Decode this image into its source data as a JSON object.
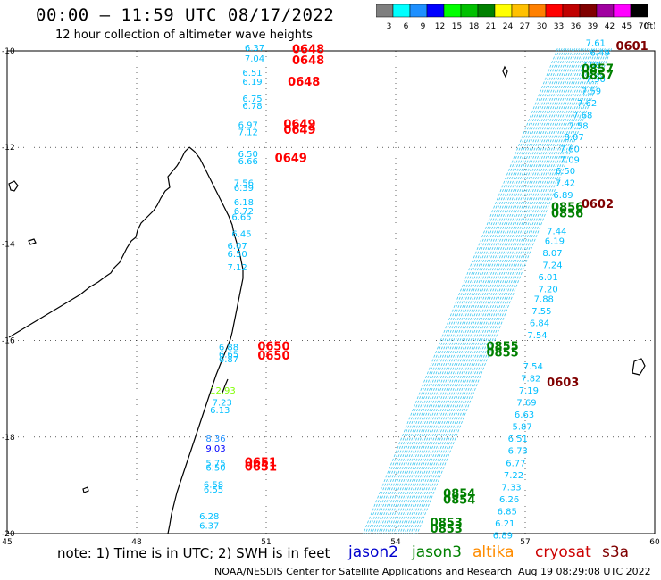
{
  "header": {
    "title": "00:00 – 11:59 UTC 08/17/2022",
    "subtitle": "12 hour collection of altimeter wave heights"
  },
  "colorbar": {
    "unit": "(ft)",
    "ticks": [
      "3",
      "6",
      "9",
      "12",
      "15",
      "18",
      "21",
      "24",
      "27",
      "30",
      "33",
      "36",
      "39",
      "42",
      "45",
      "70"
    ],
    "colors": [
      "#7f7f7f",
      "#00ffff",
      "#1e90ff",
      "#0000ff",
      "#00ff00",
      "#00c000",
      "#008000",
      "#ffff00",
      "#ffc000",
      "#ff8000",
      "#ff0000",
      "#c00000",
      "#800000",
      "#a000a0",
      "#ff00ff",
      "#000000"
    ]
  },
  "map": {
    "lat_ticks": [
      "-10",
      "-12",
      "-14",
      "-16",
      "-18",
      "-20"
    ],
    "lon_ticks": [
      "45",
      "48",
      "51",
      "54",
      "57",
      "60"
    ],
    "lat_range": [
      -20,
      -10
    ],
    "lon_range": [
      45,
      60
    ],
    "pass_labels": [
      {
        "text": "0648",
        "color": "#ff0000",
        "lon": 51.6,
        "lat": -10.05
      },
      {
        "text": "0648",
        "color": "#ff0000",
        "lon": 51.6,
        "lat": -10.28
      },
      {
        "text": "0648",
        "color": "#ff0000",
        "lon": 51.5,
        "lat": -10.72
      },
      {
        "text": "0649",
        "color": "#ff0000",
        "lon": 51.4,
        "lat": -11.6
      },
      {
        "text": "0649",
        "color": "#ff0000",
        "lon": 51.4,
        "lat": -11.72
      },
      {
        "text": "0649",
        "color": "#ff0000",
        "lon": 51.2,
        "lat": -12.3
      },
      {
        "text": "0650",
        "color": "#ff0000",
        "lon": 50.8,
        "lat": -16.2
      },
      {
        "text": "0650",
        "color": "#ff0000",
        "lon": 50.8,
        "lat": -16.4
      },
      {
        "text": "0651",
        "color": "#ff0000",
        "lon": 50.5,
        "lat": -18.6
      },
      {
        "text": "0651",
        "color": "#ff0000",
        "lon": 50.5,
        "lat": -18.7
      },
      {
        "text": "0601",
        "color": "#800000",
        "lon": 59.1,
        "lat": -9.98
      },
      {
        "text": "0602",
        "color": "#800000",
        "lon": 58.3,
        "lat": -13.25
      },
      {
        "text": "0603",
        "color": "#800000",
        "lon": 57.5,
        "lat": -16.95
      },
      {
        "text": "0857",
        "color": "#008000",
        "lon": 58.3,
        "lat": -10.45
      },
      {
        "text": "0857",
        "color": "#008000",
        "lon": 58.3,
        "lat": -10.58
      },
      {
        "text": "0856",
        "color": "#008000",
        "lon": 57.6,
        "lat": -13.32
      },
      {
        "text": "0856",
        "color": "#008000",
        "lon": 57.6,
        "lat": -13.45
      },
      {
        "text": "0855",
        "color": "#008000",
        "lon": 56.1,
        "lat": -16.2
      },
      {
        "text": "0855",
        "color": "#008000",
        "lon": 56.1,
        "lat": -16.33
      },
      {
        "text": "0854",
        "color": "#008000",
        "lon": 55.1,
        "lat": -19.25
      },
      {
        "text": "0854",
        "color": "#008000",
        "lon": 55.1,
        "lat": -19.38
      },
      {
        "text": "0853",
        "color": "#008000",
        "lon": 54.8,
        "lat": -19.85
      },
      {
        "text": "0853",
        "color": "#008000",
        "lon": 54.8,
        "lat": -19.98
      }
    ],
    "wave_heights": [
      {
        "text": "6.37",
        "color": "#00bfff",
        "lon": 50.5,
        "lat": -10.0
      },
      {
        "text": "7.04",
        "color": "#00bfff",
        "lon": 50.5,
        "lat": -10.22
      },
      {
        "text": "6.51",
        "color": "#00bfff",
        "lon": 50.45,
        "lat": -10.52
      },
      {
        "text": "6.19",
        "color": "#00bfff",
        "lon": 50.45,
        "lat": -10.7
      },
      {
        "text": "6.75",
        "color": "#00bfff",
        "lon": 50.45,
        "lat": -11.05
      },
      {
        "text": "6.78",
        "color": "#00bfff",
        "lon": 50.45,
        "lat": -11.2
      },
      {
        "text": "6.97",
        "color": "#00bfff",
        "lon": 50.35,
        "lat": -11.6
      },
      {
        "text": "7.12",
        "color": "#00bfff",
        "lon": 50.35,
        "lat": -11.75
      },
      {
        "text": "6.50",
        "color": "#00bfff",
        "lon": 50.35,
        "lat": -12.2
      },
      {
        "text": "6.66",
        "color": "#00bfff",
        "lon": 50.35,
        "lat": -12.35
      },
      {
        "text": "7.56",
        "color": "#00bfff",
        "lon": 50.25,
        "lat": -12.8
      },
      {
        "text": "6.39",
        "color": "#00bfff",
        "lon": 50.25,
        "lat": -12.9
      },
      {
        "text": "6.18",
        "color": "#00bfff",
        "lon": 50.25,
        "lat": -13.2
      },
      {
        "text": "6.72",
        "color": "#00bfff",
        "lon": 50.25,
        "lat": -13.38
      },
      {
        "text": "6.65",
        "color": "#00bfff",
        "lon": 50.2,
        "lat": -13.5
      },
      {
        "text": "6.45",
        "color": "#00bfff",
        "lon": 50.2,
        "lat": -13.85
      },
      {
        "text": "6.07",
        "color": "#00bfff",
        "lon": 50.1,
        "lat": -14.1
      },
      {
        "text": "6.50",
        "color": "#00bfff",
        "lon": 50.1,
        "lat": -14.27
      },
      {
        "text": "7.12",
        "color": "#00bfff",
        "lon": 50.1,
        "lat": -14.55
      },
      {
        "text": "6.88",
        "color": "#00bfff",
        "lon": 49.9,
        "lat": -16.2
      },
      {
        "text": "6.65",
        "color": "#00bfff",
        "lon": 49.9,
        "lat": -16.35
      },
      {
        "text": "6.87",
        "color": "#00bfff",
        "lon": 49.9,
        "lat": -16.45
      },
      {
        "text": "12.93",
        "color": "#7fff00",
        "lon": 49.7,
        "lat": -17.1
      },
      {
        "text": "7.23",
        "color": "#00bfff",
        "lon": 49.75,
        "lat": -17.35
      },
      {
        "text": "6.13",
        "color": "#00bfff",
        "lon": 49.7,
        "lat": -17.5
      },
      {
        "text": "8.36",
        "color": "#1e90ff",
        "lon": 49.6,
        "lat": -18.1
      },
      {
        "text": "9.03",
        "color": "#0000ff",
        "lon": 49.6,
        "lat": -18.3
      },
      {
        "text": "5.75",
        "color": "#00bfff",
        "lon": 49.6,
        "lat": -18.6
      },
      {
        "text": "6.50",
        "color": "#00bfff",
        "lon": 49.6,
        "lat": -18.7
      },
      {
        "text": "6.58",
        "color": "#00bfff",
        "lon": 49.55,
        "lat": -19.05
      },
      {
        "text": "6.55",
        "color": "#00bfff",
        "lon": 49.55,
        "lat": -19.15
      },
      {
        "text": "6.28",
        "color": "#00bfff",
        "lon": 49.45,
        "lat": -19.7
      },
      {
        "text": "6.37",
        "color": "#00bfff",
        "lon": 49.45,
        "lat": -19.9
      },
      {
        "text": "7.61",
        "color": "#00bfff",
        "lon": 58.4,
        "lat": -9.9
      },
      {
        "text": "6.49",
        "color": "#00bfff",
        "lon": 58.5,
        "lat": -10.1
      },
      {
        "text": "7.09",
        "color": "#00bfff",
        "lon": 58.3,
        "lat": -10.35
      },
      {
        "text": "7.30",
        "color": "#00bfff",
        "lon": 58.4,
        "lat": -10.65
      },
      {
        "text": "7.59",
        "color": "#00bfff",
        "lon": 58.3,
        "lat": -10.9
      },
      {
        "text": "7.62",
        "color": "#00bfff",
        "lon": 58.2,
        "lat": -11.15
      },
      {
        "text": "7.68",
        "color": "#00bfff",
        "lon": 58.1,
        "lat": -11.4
      },
      {
        "text": "7.58",
        "color": "#00bfff",
        "lon": 58.0,
        "lat": -11.62
      },
      {
        "text": "8.07",
        "color": "#00bfff",
        "lon": 57.9,
        "lat": -11.85
      },
      {
        "text": "7.60",
        "color": "#00bfff",
        "lon": 57.8,
        "lat": -12.1
      },
      {
        "text": "7.09",
        "color": "#00bfff",
        "lon": 57.8,
        "lat": -12.32
      },
      {
        "text": "6.50",
        "color": "#00bfff",
        "lon": 57.7,
        "lat": -12.55
      },
      {
        "text": "7.42",
        "color": "#00bfff",
        "lon": 57.7,
        "lat": -12.8
      },
      {
        "text": "6.89",
        "color": "#00bfff",
        "lon": 57.65,
        "lat": -13.05
      },
      {
        "text": "7.44",
        "color": "#00bfff",
        "lon": 57.5,
        "lat": -13.8
      },
      {
        "text": "6.19",
        "color": "#00bfff",
        "lon": 57.45,
        "lat": -14.0
      },
      {
        "text": "8.07",
        "color": "#00bfff",
        "lon": 57.4,
        "lat": -14.25
      },
      {
        "text": "7.24",
        "color": "#00bfff",
        "lon": 57.4,
        "lat": -14.5
      },
      {
        "text": "6.01",
        "color": "#00bfff",
        "lon": 57.3,
        "lat": -14.75
      },
      {
        "text": "7.20",
        "color": "#00bfff",
        "lon": 57.3,
        "lat": -15.0
      },
      {
        "text": "7.88",
        "color": "#00bfff",
        "lon": 57.2,
        "lat": -15.2
      },
      {
        "text": "7.55",
        "color": "#00bfff",
        "lon": 57.15,
        "lat": -15.45
      },
      {
        "text": "6.84",
        "color": "#00bfff",
        "lon": 57.1,
        "lat": -15.7
      },
      {
        "text": "7.54",
        "color": "#00bfff",
        "lon": 57.05,
        "lat": -15.95
      },
      {
        "text": "7.54",
        "color": "#00bfff",
        "lon": 56.95,
        "lat": -16.6
      },
      {
        "text": "7.82",
        "color": "#00bfff",
        "lon": 56.9,
        "lat": -16.85
      },
      {
        "text": "7.19",
        "color": "#00bfff",
        "lon": 56.85,
        "lat": -17.1
      },
      {
        "text": "7.69",
        "color": "#00bfff",
        "lon": 56.8,
        "lat": -17.35
      },
      {
        "text": "6.63",
        "color": "#00bfff",
        "lon": 56.75,
        "lat": -17.6
      },
      {
        "text": "5.87",
        "color": "#00bfff",
        "lon": 56.7,
        "lat": -17.85
      },
      {
        "text": "6.51",
        "color": "#00bfff",
        "lon": 56.6,
        "lat": -18.1
      },
      {
        "text": "6.73",
        "color": "#00bfff",
        "lon": 56.6,
        "lat": -18.35
      },
      {
        "text": "6.77",
        "color": "#00bfff",
        "lon": 56.55,
        "lat": -18.6
      },
      {
        "text": "7.22",
        "color": "#00bfff",
        "lon": 56.5,
        "lat": -18.85
      },
      {
        "text": "7.33",
        "color": "#00bfff",
        "lon": 56.45,
        "lat": -19.1
      },
      {
        "text": "6.26",
        "color": "#00bfff",
        "lon": 56.4,
        "lat": -19.35
      },
      {
        "text": "6.85",
        "color": "#00bfff",
        "lon": 56.35,
        "lat": -19.6
      },
      {
        "text": "6.21",
        "color": "#00bfff",
        "lon": 56.3,
        "lat": -19.85
      },
      {
        "text": "6.89",
        "color": "#00bfff",
        "lon": 56.25,
        "lat": -20.1
      }
    ]
  },
  "note": "note:  1) Time is in UTC;  2) SWH is in feet",
  "legend": [
    {
      "name": "jason2",
      "color": "#0000cd"
    },
    {
      "name": "jason3",
      "color": "#008000"
    },
    {
      "name": "altika",
      "color": "#ff8c00"
    },
    {
      "name": "cryosat",
      "color": "#cc0000"
    },
    {
      "name": "s3a",
      "color": "#800000"
    }
  ],
  "footer": {
    "credit": "NOAA/NESDIS Center for Satellite Applications and Research",
    "timestamp": "Aug 19 08:29:08 UTC 2022"
  }
}
